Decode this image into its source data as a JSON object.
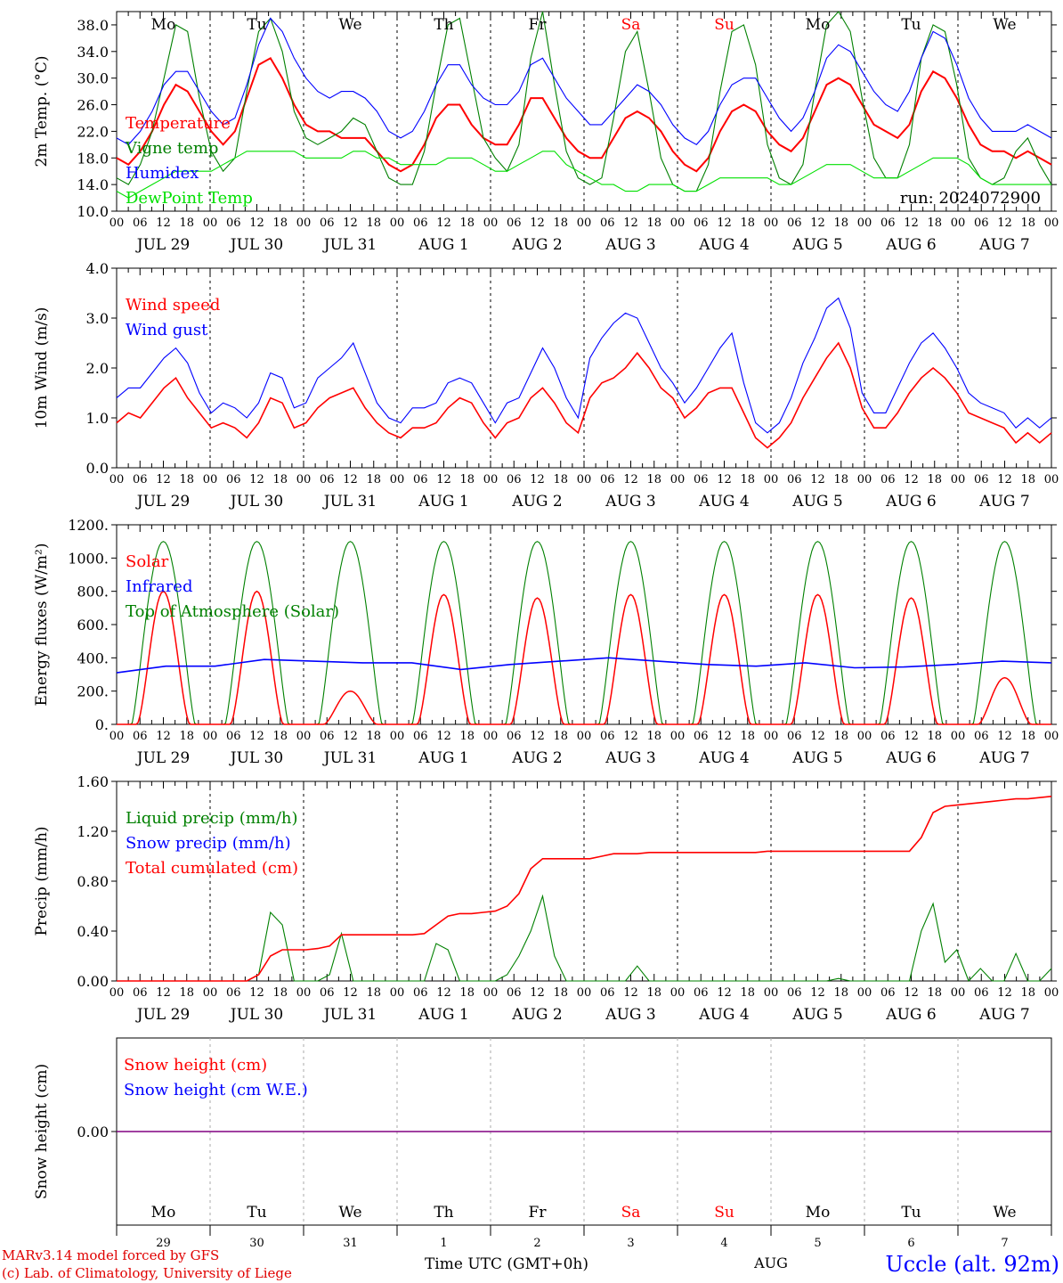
{
  "chart_data": [
    {
      "type": "line",
      "ylabel": "2m Temp. (°C)",
      "ylim": [
        10,
        40
      ],
      "yticks": [
        "10.0",
        "14.0",
        "18.0",
        "22.0",
        "26.0",
        "30.0",
        "34.0",
        "38.0"
      ],
      "yticks_values": [
        10,
        14,
        18,
        22,
        26,
        30,
        34,
        38
      ],
      "run_label": "run: 2024072900",
      "series": [
        {
          "name": "Temperature",
          "color": "#ff0000",
          "values": [
            18,
            17,
            19,
            22,
            26,
            29,
            28,
            25,
            22,
            20,
            22,
            27,
            32,
            33,
            30,
            26,
            23,
            22,
            22,
            21,
            21,
            21,
            19,
            17,
            16,
            17,
            20,
            24,
            26,
            26,
            23,
            21,
            20,
            20,
            23,
            27,
            27,
            24,
            21,
            19,
            18,
            18,
            21,
            24,
            25,
            24,
            22,
            19,
            17,
            16,
            18,
            22,
            25,
            26,
            25,
            22,
            20,
            19,
            21,
            25,
            29,
            30,
            29,
            26,
            23,
            22,
            21,
            23,
            28,
            31,
            30,
            27,
            23,
            20,
            19,
            19,
            18,
            19,
            18,
            17
          ]
        },
        {
          "name": "Vigne temp",
          "color": "#008000",
          "values": [
            15,
            14,
            17,
            22,
            30,
            38,
            37,
            27,
            19,
            16,
            18,
            28,
            37,
            39,
            34,
            25,
            21,
            20,
            21,
            22,
            24,
            23,
            19,
            15,
            14,
            14,
            19,
            29,
            38,
            39,
            30,
            21,
            18,
            16,
            20,
            33,
            40,
            29,
            19,
            15,
            14,
            15,
            24,
            34,
            37,
            28,
            18,
            14,
            13,
            13,
            17,
            28,
            37,
            38,
            32,
            20,
            15,
            14,
            17,
            28,
            38,
            40,
            37,
            27,
            18,
            15,
            15,
            20,
            33,
            38,
            37,
            29,
            18,
            15,
            14,
            15,
            19,
            21,
            17,
            14
          ]
        },
        {
          "name": "Humidex",
          "color": "#0000ff",
          "values": [
            21,
            20,
            22,
            25,
            29,
            31,
            31,
            28,
            25,
            23,
            24,
            29,
            35,
            39,
            37,
            33,
            30,
            28,
            27,
            28,
            28,
            27,
            25,
            22,
            21,
            22,
            25,
            29,
            32,
            32,
            29,
            27,
            26,
            26,
            28,
            32,
            33,
            30,
            27,
            25,
            23,
            23,
            25,
            27,
            29,
            28,
            26,
            23,
            21,
            20,
            22,
            26,
            29,
            30,
            30,
            27,
            24,
            22,
            24,
            28,
            33,
            35,
            34,
            31,
            28,
            26,
            25,
            28,
            33,
            37,
            36,
            32,
            27,
            24,
            22,
            22,
            22,
            23,
            22,
            21
          ]
        },
        {
          "name": "DewPoint Temp",
          "color": "#00e000",
          "values": [
            13,
            12,
            13,
            14,
            15,
            16,
            16,
            16,
            16,
            17,
            18,
            19,
            19,
            19,
            19,
            19,
            18,
            18,
            18,
            18,
            19,
            19,
            18,
            18,
            17,
            17,
            17,
            17,
            18,
            18,
            18,
            17,
            16,
            16,
            17,
            18,
            19,
            19,
            17,
            16,
            15,
            14,
            14,
            13,
            13,
            14,
            14,
            14,
            13,
            13,
            14,
            15,
            15,
            15,
            15,
            15,
            14,
            14,
            15,
            16,
            17,
            17,
            17,
            16,
            15,
            15,
            15,
            16,
            17,
            18,
            18,
            18,
            17,
            15,
            14,
            14,
            14,
            14,
            14,
            14
          ]
        }
      ]
    },
    {
      "type": "line",
      "ylabel": "10m Wind (m/s)",
      "ylim": [
        0,
        4
      ],
      "yticks": [
        "0.0",
        "1.0",
        "2.0",
        "3.0",
        "4.0"
      ],
      "yticks_values": [
        0,
        1,
        2,
        3,
        4
      ],
      "series": [
        {
          "name": "Wind speed",
          "color": "#ff0000",
          "values": [
            0.9,
            1.1,
            1.0,
            1.3,
            1.6,
            1.8,
            1.4,
            1.1,
            0.8,
            0.9,
            0.8,
            0.6,
            0.9,
            1.4,
            1.3,
            0.8,
            0.9,
            1.2,
            1.4,
            1.5,
            1.6,
            1.2,
            0.9,
            0.7,
            0.6,
            0.8,
            0.8,
            0.9,
            1.2,
            1.4,
            1.3,
            0.9,
            0.6,
            0.9,
            1.0,
            1.4,
            1.6,
            1.3,
            0.9,
            0.7,
            1.4,
            1.7,
            1.8,
            2.0,
            2.3,
            2.0,
            1.6,
            1.4,
            1.0,
            1.2,
            1.5,
            1.6,
            1.6,
            1.1,
            0.6,
            0.4,
            0.6,
            0.9,
            1.4,
            1.8,
            2.2,
            2.5,
            2.0,
            1.2,
            0.8,
            0.8,
            1.1,
            1.5,
            1.8,
            2.0,
            1.8,
            1.5,
            1.1,
            1.0,
            0.9,
            0.8,
            0.5,
            0.7,
            0.5,
            0.7
          ]
        },
        {
          "name": "Wind gust",
          "color": "#0000ff",
          "values": [
            1.4,
            1.6,
            1.6,
            1.9,
            2.2,
            2.4,
            2.1,
            1.5,
            1.1,
            1.3,
            1.2,
            1.0,
            1.3,
            1.9,
            1.8,
            1.2,
            1.3,
            1.8,
            2.0,
            2.2,
            2.5,
            1.9,
            1.3,
            1.0,
            0.9,
            1.2,
            1.2,
            1.3,
            1.7,
            1.8,
            1.7,
            1.3,
            0.9,
            1.3,
            1.4,
            1.9,
            2.4,
            2.0,
            1.4,
            1.0,
            2.2,
            2.6,
            2.9,
            3.1,
            3.0,
            2.5,
            2.0,
            1.7,
            1.3,
            1.6,
            2.0,
            2.4,
            2.7,
            1.7,
            0.9,
            0.7,
            0.9,
            1.4,
            2.1,
            2.6,
            3.2,
            3.4,
            2.8,
            1.5,
            1.1,
            1.1,
            1.6,
            2.1,
            2.5,
            2.7,
            2.4,
            2.0,
            1.5,
            1.3,
            1.2,
            1.1,
            0.8,
            1.0,
            0.8,
            1.0
          ]
        }
      ]
    },
    {
      "type": "line",
      "ylabel": "Energy fluxes (W/m²)",
      "ylim": [
        0,
        1200
      ],
      "yticks": [
        "0.",
        "200.",
        "400.",
        "600.",
        "800.",
        "1000.",
        "1200."
      ],
      "yticks_values": [
        0,
        200,
        400,
        600,
        800,
        1000,
        1200
      ],
      "series": [
        {
          "name": "Solar",
          "color": "#ff0000",
          "daily_peaks": [
            800,
            800,
            200,
            780,
            760,
            780,
            780,
            780,
            760,
            280
          ]
        },
        {
          "name": "Infrared",
          "color": "#0000ff",
          "daily_values": [
            310,
            350,
            350,
            390,
            380,
            370,
            370,
            330,
            360,
            380,
            400,
            380,
            360,
            350,
            370,
            340,
            345,
            360,
            380,
            370
          ]
        },
        {
          "name": "Top of Atmosphere (Solar)",
          "color": "#008000",
          "daily_peak": 1100
        }
      ]
    },
    {
      "type": "line",
      "ylabel": "Precip (mm/h)",
      "ylim": [
        0,
        1.6
      ],
      "yticks": [
        "0.00",
        "0.40",
        "0.80",
        "1.20",
        "1.60"
      ],
      "yticks_values": [
        0,
        0.4,
        0.8,
        1.2,
        1.6
      ],
      "series": [
        {
          "name": "Liquid precip (mm/h)",
          "color": "#008000",
          "values": [
            0,
            0,
            0,
            0,
            0,
            0,
            0,
            0,
            0,
            0,
            0,
            0,
            0.05,
            0.55,
            0.45,
            0,
            0,
            0,
            0.05,
            0.38,
            0,
            0,
            0,
            0,
            0,
            0,
            0,
            0.3,
            0.25,
            0,
            0,
            0,
            0,
            0.05,
            0.2,
            0.4,
            0.68,
            0.2,
            0,
            0,
            0,
            0,
            0,
            0,
            0.12,
            0,
            0,
            0,
            0,
            0,
            0,
            0,
            0,
            0,
            0,
            0,
            0,
            0,
            0,
            0,
            0,
            0.02,
            0,
            0,
            0,
            0,
            0,
            0,
            0.4,
            0.62,
            0.15,
            0.25,
            0,
            0.1,
            0,
            0,
            0.22,
            0,
            0,
            0.1
          ]
        },
        {
          "name": "Snow precip (mm/h)",
          "color": "#0000ff",
          "values": []
        },
        {
          "name": "Total cumulated (cm)",
          "color": "#ff0000",
          "values": [
            0,
            0,
            0,
            0,
            0,
            0,
            0,
            0,
            0,
            0,
            0,
            0,
            0.05,
            0.2,
            0.25,
            0.25,
            0.25,
            0.26,
            0.28,
            0.37,
            0.37,
            0.37,
            0.37,
            0.37,
            0.37,
            0.37,
            0.38,
            0.45,
            0.52,
            0.54,
            0.54,
            0.55,
            0.56,
            0.6,
            0.7,
            0.9,
            0.98,
            0.98,
            0.98,
            0.98,
            0.98,
            1.0,
            1.02,
            1.02,
            1.02,
            1.03,
            1.03,
            1.03,
            1.03,
            1.03,
            1.03,
            1.03,
            1.03,
            1.03,
            1.03,
            1.04,
            1.04,
            1.04,
            1.04,
            1.04,
            1.04,
            1.04,
            1.04,
            1.04,
            1.04,
            1.04,
            1.04,
            1.04,
            1.15,
            1.35,
            1.4,
            1.41,
            1.42,
            1.43,
            1.44,
            1.45,
            1.46,
            1.46,
            1.47,
            1.48
          ]
        }
      ]
    },
    {
      "type": "line",
      "ylabel": "Snow height (cm)",
      "yticks": [
        "0.00"
      ],
      "yticks_values": [
        0
      ],
      "series": [
        {
          "name": "Snow height (cm)",
          "color": "#ff0000",
          "values": [
            0,
            0
          ]
        },
        {
          "name": "Snow height (cm W.E.)",
          "color": "#0000ff",
          "values": [
            0,
            0
          ]
        }
      ]
    }
  ],
  "x_axis": {
    "hour_labels": [
      "00",
      "06",
      "12",
      "18"
    ],
    "final_label": "00",
    "dates": [
      "JUL 29",
      "JUL 30",
      "JUL 31",
      "AUG  1",
      "AUG  2",
      "AUG  3",
      "AUG  4",
      "AUG  5",
      "AUG  6",
      "AUG  7"
    ],
    "weekdays": [
      "Mo",
      "Tu",
      "We",
      "Th",
      "Fr",
      "Sa",
      "Su",
      "Mo",
      "Tu",
      "We"
    ],
    "weekday_colors": [
      "#000000",
      "#000000",
      "#000000",
      "#000000",
      "#000000",
      "#ff0000",
      "#ff0000",
      "#000000",
      "#000000",
      "#000000"
    ],
    "day_numbers": [
      "29",
      "30",
      "31",
      "1",
      "2",
      "3",
      "4",
      "5",
      "6",
      "7"
    ],
    "month_label": "AUG",
    "title": "Time UTC (GMT+0h)"
  },
  "footer": {
    "credit_line1": "MARv3.14 model forced by GFS",
    "credit_line2": "(c) Lab. of Climatology, University of Liege",
    "station": "Uccle (alt. 92m)"
  },
  "colors": {
    "red": "#ff0000",
    "green": "#008000",
    "blue": "#0000ff",
    "lightgreen": "#00e000",
    "purple": "#800080"
  }
}
